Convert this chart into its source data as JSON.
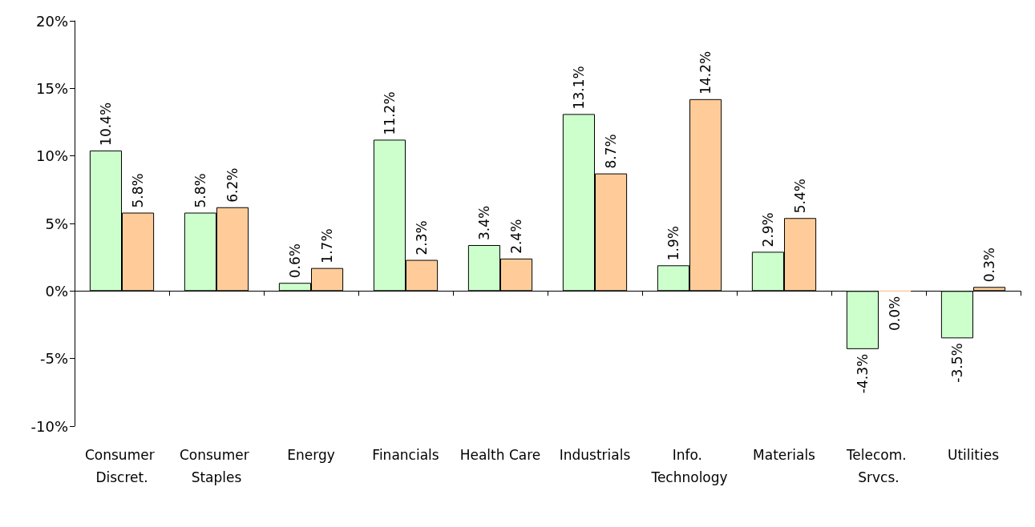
{
  "chart_data": {
    "type": "bar",
    "categories": [
      "Consumer Discret.",
      "Consumer Staples",
      "Energy",
      "Financials",
      "Health Care",
      "Industrials",
      "Info. Technology",
      "Materials",
      "Telecom. Srvcs.",
      "Utilities"
    ],
    "series": [
      {
        "color": "#ccffcc",
        "values": [
          10.4,
          5.8,
          0.6,
          11.2,
          3.4,
          13.1,
          1.9,
          2.9,
          -4.3,
          -3.5
        ],
        "value_labels": [
          "10.4%",
          "5.8%",
          "0.6%",
          "11.2%",
          "3.4%",
          "13.1%",
          "1.9%",
          "2.9%",
          "-4.3%",
          "-3.5%"
        ]
      },
      {
        "color": "#ffcc99",
        "values": [
          5.8,
          6.2,
          1.7,
          2.3,
          2.4,
          8.7,
          14.2,
          5.4,
          0.0,
          0.3
        ],
        "value_labels": [
          "5.8%",
          "6.2%",
          "1.7%",
          "2.3%",
          "2.4%",
          "8.7%",
          "14.2%",
          "5.4%",
          "0.0%",
          "0.3%"
        ]
      }
    ],
    "ylim": [
      -10,
      20
    ],
    "yticks": [
      {
        "value": -10,
        "label": "-10%"
      },
      {
        "value": -5,
        "label": "-5%"
      },
      {
        "value": 0,
        "label": "0%"
      },
      {
        "value": 5,
        "label": "5%"
      },
      {
        "value": 10,
        "label": "10%"
      },
      {
        "value": 15,
        "label": "15%"
      },
      {
        "value": 20,
        "label": "20%"
      }
    ],
    "ylabel": null
  }
}
